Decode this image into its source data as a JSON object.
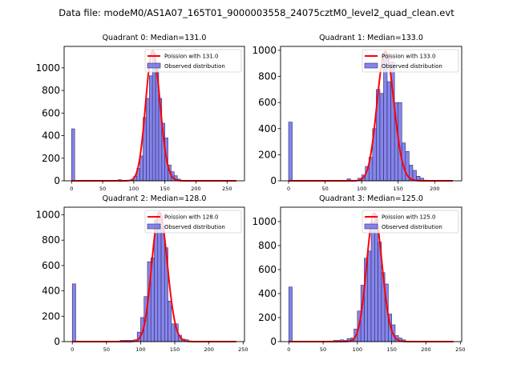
{
  "figure": {
    "suptitle": "Data file: modeM0/AS1A07_165T01_9000003558_24075cztM0_level2_quad_clean.evt"
  },
  "colors": {
    "bar_fill": "#7070e8",
    "bar_edge": "#30306a",
    "poisson_line": "#ff0000"
  },
  "chart_data": [
    {
      "type": "bar",
      "title": "Quadrant 0: Median=131.0",
      "legend": [
        "Poission with 131.0",
        "Observed distribution"
      ],
      "legend_position": "top-right",
      "xlim": [
        -12,
        278
      ],
      "ylim": [
        0,
        1190
      ],
      "xticks": [
        0,
        50,
        100,
        150,
        200,
        250
      ],
      "yticks": [
        0,
        200,
        400,
        600,
        800,
        1000
      ],
      "bin_width": 5,
      "bins": [
        [
          0,
          460
        ],
        [
          75,
          10
        ],
        [
          80,
          5
        ],
        [
          95,
          5
        ],
        [
          100,
          40
        ],
        [
          105,
          110
        ],
        [
          110,
          220
        ],
        [
          115,
          560
        ],
        [
          120,
          730
        ],
        [
          125,
          930
        ],
        [
          130,
          1130
        ],
        [
          135,
          1000
        ],
        [
          140,
          730
        ],
        [
          145,
          510
        ],
        [
          150,
          380
        ],
        [
          155,
          140
        ],
        [
          160,
          80
        ],
        [
          165,
          45
        ],
        [
          170,
          15
        ],
        [
          175,
          5
        ]
      ],
      "poisson_mean": 131.0,
      "poisson_peak": 1150,
      "poisson_range": [
        0,
        265
      ]
    },
    {
      "type": "bar",
      "title": "Quadrant 1: Median=133.0",
      "legend": [
        "Poission with 133.0",
        "Observed distribution"
      ],
      "legend_position": "top-right",
      "xlim": [
        -11,
        237
      ],
      "ylim": [
        0,
        1030
      ],
      "xticks": [
        0,
        50,
        100,
        150,
        200
      ],
      "yticks": [
        0,
        200,
        400,
        600,
        800,
        1000
      ],
      "bin_width": 5,
      "bins": [
        [
          0,
          450
        ],
        [
          80,
          15
        ],
        [
          95,
          20
        ],
        [
          100,
          45
        ],
        [
          105,
          110
        ],
        [
          110,
          180
        ],
        [
          115,
          400
        ],
        [
          120,
          700
        ],
        [
          125,
          670
        ],
        [
          130,
          980
        ],
        [
          135,
          760
        ],
        [
          140,
          910
        ],
        [
          145,
          600
        ],
        [
          150,
          600
        ],
        [
          155,
          290
        ],
        [
          160,
          225
        ],
        [
          165,
          120
        ],
        [
          170,
          80
        ],
        [
          175,
          35
        ],
        [
          180,
          20
        ],
        [
          185,
          5
        ]
      ],
      "poisson_mean": 133.0,
      "poisson_peak": 990,
      "poisson_range": [
        0,
        225
      ]
    },
    {
      "type": "bar",
      "title": "Quadrant 2: Median=128.0",
      "legend": [
        "Poission with 128.0",
        "Observed distribution"
      ],
      "legend_position": "top-right",
      "xlim": [
        -12,
        252
      ],
      "ylim": [
        0,
        1060
      ],
      "xticks": [
        0,
        50,
        100,
        150,
        200,
        250
      ],
      "yticks": [
        0,
        200,
        400,
        600,
        800,
        1000
      ],
      "bin_width": 5,
      "bins": [
        [
          0,
          455
        ],
        [
          70,
          10
        ],
        [
          75,
          10
        ],
        [
          80,
          10
        ],
        [
          85,
          10
        ],
        [
          90,
          15
        ],
        [
          95,
          75
        ],
        [
          100,
          190
        ],
        [
          105,
          355
        ],
        [
          110,
          630
        ],
        [
          115,
          660
        ],
        [
          120,
          960
        ],
        [
          125,
          1000
        ],
        [
          130,
          905
        ],
        [
          135,
          740
        ],
        [
          140,
          320
        ],
        [
          145,
          140
        ],
        [
          150,
          140
        ],
        [
          155,
          50
        ],
        [
          160,
          20
        ],
        [
          165,
          15
        ],
        [
          170,
          5
        ]
      ],
      "poisson_mean": 128.0,
      "poisson_peak": 1020,
      "poisson_range": [
        0,
        240
      ]
    },
    {
      "type": "bar",
      "title": "Quadrant 3: Median=125.0",
      "legend": [
        "Poission with 125.0",
        "Observed distribution"
      ],
      "legend_position": "top-right",
      "xlim": [
        -12,
        252
      ],
      "ylim": [
        0,
        1120
      ],
      "xticks": [
        0,
        50,
        100,
        150,
        200,
        250
      ],
      "yticks": [
        0,
        200,
        400,
        600,
        800,
        1000
      ],
      "bin_width": 5,
      "bins": [
        [
          0,
          455
        ],
        [
          60,
          5
        ],
        [
          65,
          10
        ],
        [
          70,
          10
        ],
        [
          75,
          15
        ],
        [
          80,
          10
        ],
        [
          85,
          25
        ],
        [
          90,
          30
        ],
        [
          95,
          105
        ],
        [
          100,
          255
        ],
        [
          105,
          470
        ],
        [
          110,
          695
        ],
        [
          115,
          755
        ],
        [
          120,
          1000
        ],
        [
          125,
          1050
        ],
        [
          130,
          830
        ],
        [
          135,
          575
        ],
        [
          140,
          480
        ],
        [
          145,
          230
        ],
        [
          150,
          140
        ],
        [
          155,
          50
        ],
        [
          160,
          30
        ],
        [
          165,
          15
        ],
        [
          170,
          5
        ]
      ],
      "poisson_mean": 125.0,
      "poisson_peak": 1070,
      "poisson_range": [
        0,
        240
      ]
    }
  ]
}
